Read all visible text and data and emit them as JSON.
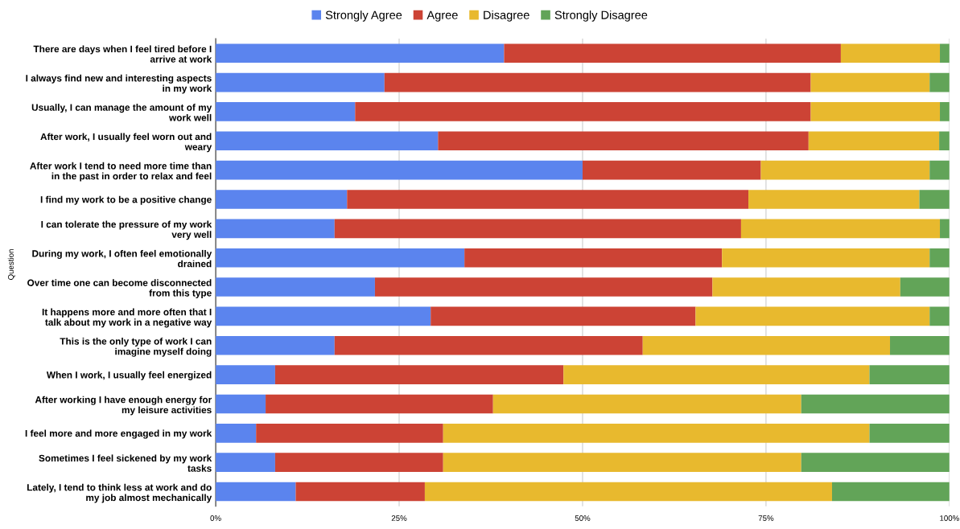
{
  "chart_data": {
    "type": "bar",
    "orientation": "horizontal",
    "stacked": true,
    "ylabel": "Question",
    "legend": "top",
    "grid": "x",
    "categories": [
      "There are days when I feel tired before I\narrive at work",
      "I always find new and interesting aspects\nin my work",
      "Usually, I can manage the amount of my\nwork well",
      "After work, I usually feel worn out and\nweary",
      "After work I tend to need more time than\nin the past in order to relax and feel",
      "I find my work to be a positive change",
      "I can tolerate the pressure of my work\nvery well",
      "During my work, I often feel emotionally\ndrained",
      "Over time one can become disconnected\nfrom this type",
      "It happens more and more often that I\ntalk about my work in a negative way",
      "This is the only type of work I can\nimagine myself doing",
      "When I work, I usually feel energized",
      "After working I have enough energy for\nmy leisure activities",
      "I feel more and more engaged in my work",
      "Sometimes I feel sickened by my work\ntasks",
      "Lately, I tend to think less at work and do\nmy job almost mechanically"
    ],
    "xlim": [
      0,
      100
    ],
    "xticks": [
      {
        "value": 0,
        "label": "0%"
      },
      {
        "value": 25,
        "label": "25%"
      },
      {
        "value": 50,
        "label": "50%"
      },
      {
        "value": 75,
        "label": "75%"
      },
      {
        "value": 100,
        "label": "100%"
      }
    ],
    "series": [
      {
        "name": "Strongly Agree",
        "color": "#5b84ee",
        "values": [
          39.3,
          23.0,
          19.0,
          30.3,
          50.0,
          17.9,
          16.2,
          33.9,
          21.7,
          29.3,
          16.2,
          8.1,
          6.8,
          5.5,
          8.1,
          10.9
        ]
      },
      {
        "name": "Agree",
        "color": "#cc4335",
        "values": [
          45.9,
          58.1,
          62.1,
          50.5,
          24.3,
          54.7,
          55.4,
          35.1,
          46.0,
          36.1,
          42.0,
          39.3,
          31.0,
          25.5,
          22.9,
          17.6
        ]
      },
      {
        "name": "Disagree",
        "color": "#e8b92e",
        "values": [
          13.5,
          16.2,
          17.6,
          17.8,
          23.0,
          23.3,
          27.1,
          28.3,
          25.6,
          31.9,
          33.7,
          41.7,
          42.0,
          58.1,
          48.8,
          55.5
        ]
      },
      {
        "name": "Strongly Disagree",
        "color": "#62a458",
        "values": [
          1.3,
          2.7,
          1.3,
          1.4,
          2.7,
          4.1,
          1.3,
          2.7,
          6.7,
          2.7,
          8.1,
          10.9,
          20.2,
          10.9,
          20.2,
          16.0
        ]
      }
    ]
  }
}
